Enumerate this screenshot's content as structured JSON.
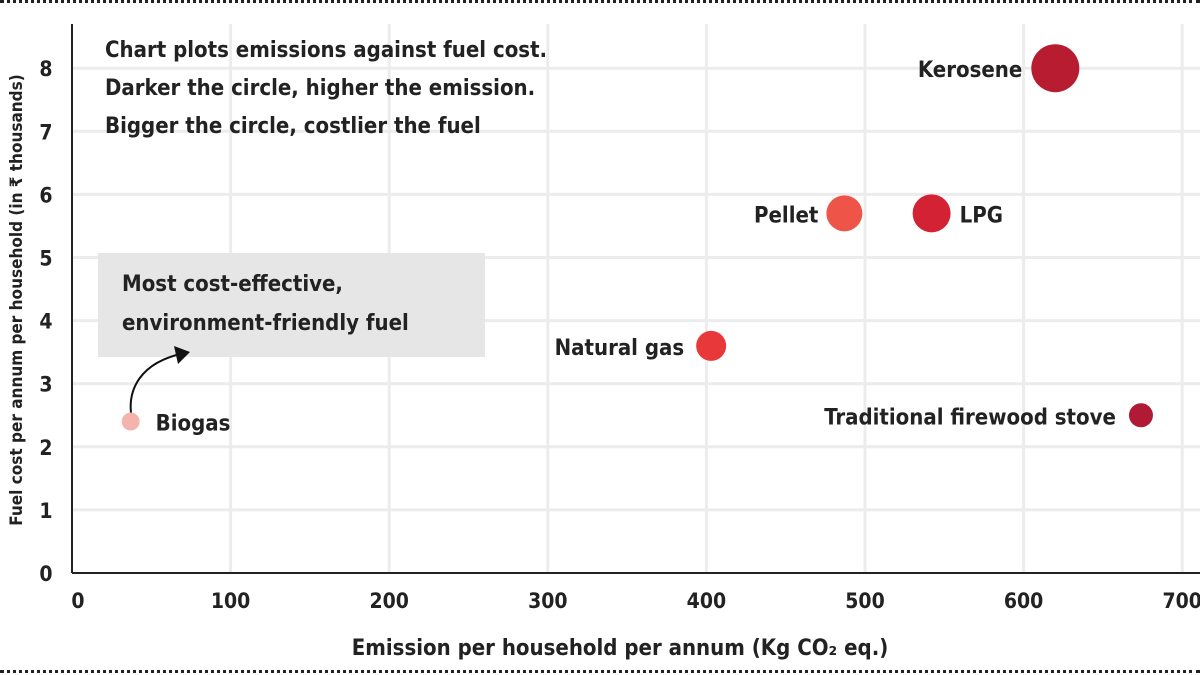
{
  "chart_data": {
    "type": "scatter",
    "title": "",
    "xlabel": "Emission per household per annum (Kg CO₂ eq.)",
    "ylabel": "Fuel cost per annum per household (in ₹ thousands)",
    "xlim": [
      0,
      700
    ],
    "ylim": [
      0,
      8
    ],
    "xticks": [
      "0",
      "100",
      "200",
      "300",
      "400",
      "500",
      "600",
      "700"
    ],
    "yticks": [
      "0",
      "1",
      "2",
      "3",
      "4",
      "5",
      "6",
      "7",
      "8"
    ],
    "grid": true,
    "notes": [
      "Chart plots emissions against fuel cost.",
      "Darker the circle, higher the emission.",
      "Bigger the circle, costlier the fuel"
    ],
    "annotation": [
      "Most cost-effective,",
      "environment-friendly fuel"
    ],
    "points": [
      {
        "label": "Biogas",
        "x": 37,
        "y": 2.4,
        "color": "#f4b3ad"
      },
      {
        "label": "Natural gas",
        "x": 403,
        "y": 3.6,
        "color": "#e8383a"
      },
      {
        "label": "Pellet",
        "x": 487,
        "y": 5.7,
        "color": "#ee5548"
      },
      {
        "label": "LPG",
        "x": 542,
        "y": 5.7,
        "color": "#d42235"
      },
      {
        "label": "Kerosene",
        "x": 620,
        "y": 8.0,
        "color": "#b81c30"
      },
      {
        "label": "Traditional firewood stove",
        "x": 674,
        "y": 2.5,
        "color": "#b01a34"
      }
    ]
  }
}
